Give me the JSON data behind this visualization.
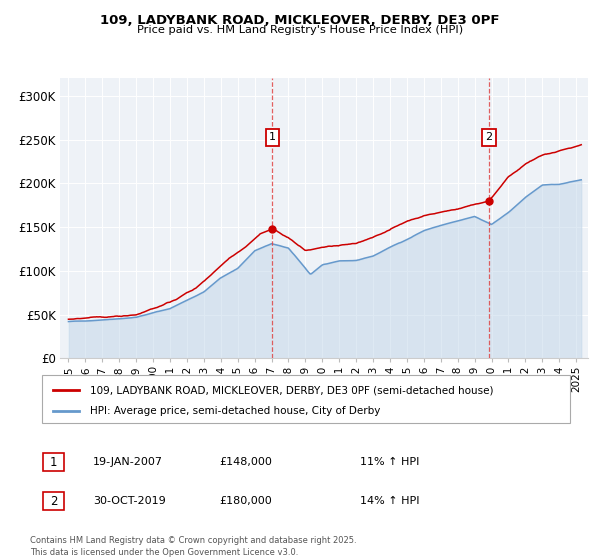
{
  "title1": "109, LADYBANK ROAD, MICKLEOVER, DERBY, DE3 0PF",
  "title2": "Price paid vs. HM Land Registry's House Price Index (HPI)",
  "legend_line1": "109, LADYBANK ROAD, MICKLEOVER, DERBY, DE3 0PF (semi-detached house)",
  "legend_line2": "HPI: Average price, semi-detached house, City of Derby",
  "annotation1_label": "1",
  "annotation1_date": "19-JAN-2007",
  "annotation1_price": "£148,000",
  "annotation1_hpi": "11% ↑ HPI",
  "annotation2_label": "2",
  "annotation2_date": "30-OCT-2019",
  "annotation2_price": "£180,000",
  "annotation2_hpi": "14% ↑ HPI",
  "footer": "Contains HM Land Registry data © Crown copyright and database right 2025.\nThis data is licensed under the Open Government Licence v3.0.",
  "red_color": "#cc0000",
  "blue_color": "#6699cc",
  "blue_fill_color": "#c5d8ea",
  "plot_bg": "#eef2f7",
  "vline_color": "#dd4444",
  "vline1_x": 2007.05,
  "vline2_x": 2019.83,
  "point1_x": 2007.05,
  "point1_y": 148000,
  "point2_x": 2019.83,
  "point2_y": 180000,
  "ylim_min": 0,
  "ylim_max": 320000,
  "xlim_min": 1994.5,
  "xlim_max": 2025.7,
  "yticks": [
    0,
    50000,
    100000,
    150000,
    200000,
    250000,
    300000
  ],
  "ytick_labels": [
    "£0",
    "£50K",
    "£100K",
    "£150K",
    "£200K",
    "£250K",
    "£300K"
  ],
  "xtick_years": [
    1995,
    1996,
    1997,
    1998,
    1999,
    2000,
    2001,
    2002,
    2003,
    2004,
    2005,
    2006,
    2007,
    2008,
    2009,
    2010,
    2011,
    2012,
    2013,
    2014,
    2015,
    2016,
    2017,
    2018,
    2019,
    2020,
    2021,
    2022,
    2023,
    2024,
    2025
  ],
  "hpi_ctrl_years": [
    1995,
    1997,
    1999,
    2001,
    2003,
    2004,
    2005,
    2006,
    2007,
    2008,
    2009.3,
    2010,
    2011,
    2012,
    2013,
    2014,
    2015,
    2016,
    2017,
    2018,
    2019,
    2020,
    2021,
    2022,
    2023,
    2024,
    2025.3
  ],
  "hpi_ctrl_vals": [
    42000,
    44000,
    47000,
    57000,
    76000,
    92000,
    103000,
    123000,
    131000,
    126000,
    96000,
    107000,
    111000,
    112000,
    117000,
    127000,
    136000,
    146000,
    152000,
    157000,
    162000,
    153000,
    167000,
    184000,
    198000,
    199000,
    204000
  ],
  "red_ctrl_years": [
    1995,
    1997,
    1999,
    2001,
    2002.5,
    2003.5,
    2004.5,
    2005.5,
    2006.3,
    2007.05,
    2008,
    2009,
    2010,
    2011,
    2012,
    2013,
    2014,
    2015,
    2016,
    2017,
    2018,
    2019.83,
    2020.5,
    2021,
    2022,
    2023,
    2024,
    2025.3
  ],
  "red_ctrl_vals": [
    45000,
    47000,
    50000,
    64000,
    80000,
    97000,
    115000,
    128000,
    142000,
    148000,
    138000,
    123000,
    127000,
    129000,
    131000,
    139000,
    147000,
    157000,
    163000,
    167000,
    171000,
    180000,
    195000,
    208000,
    222000,
    232000,
    237000,
    244000
  ]
}
